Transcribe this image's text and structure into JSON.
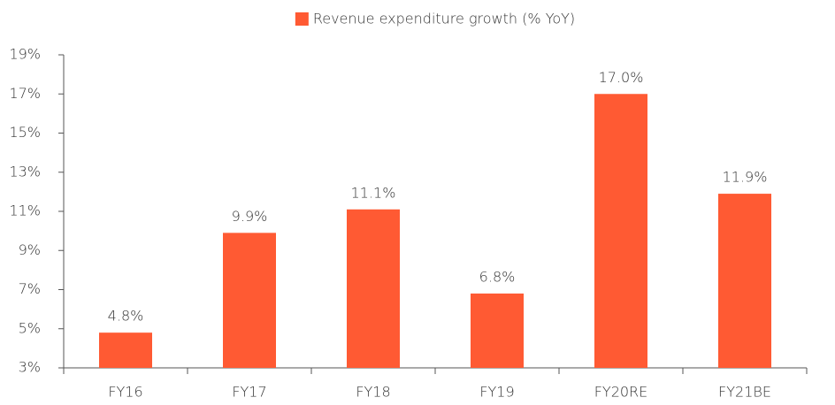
{
  "chart_data": {
    "type": "bar",
    "categories": [
      "FY16",
      "FY17",
      "FY18",
      "FY19",
      "FY20RE",
      "FY21BE"
    ],
    "series": [
      {
        "name": "Revenue expenditure growth (% YoY)",
        "color": "#ff5a33",
        "values": [
          4.8,
          9.9,
          11.1,
          6.8,
          17.0,
          11.9
        ],
        "value_labels": [
          "4.8%",
          "9.9%",
          "11.1%",
          "6.8%",
          "17.0%",
          "11.9%"
        ]
      }
    ],
    "ylim": [
      3,
      19
    ],
    "yticks": [
      {
        "value": 3,
        "label": "3%"
      },
      {
        "value": 5,
        "label": "5%"
      },
      {
        "value": 7,
        "label": "7%"
      },
      {
        "value": 9,
        "label": "9%"
      },
      {
        "value": 11,
        "label": "11%"
      },
      {
        "value": 13,
        "label": "13%"
      },
      {
        "value": 15,
        "label": "15%"
      },
      {
        "value": 17,
        "label": "17%"
      },
      {
        "value": 19,
        "label": "19%"
      }
    ],
    "legend": "top",
    "grid": false
  }
}
